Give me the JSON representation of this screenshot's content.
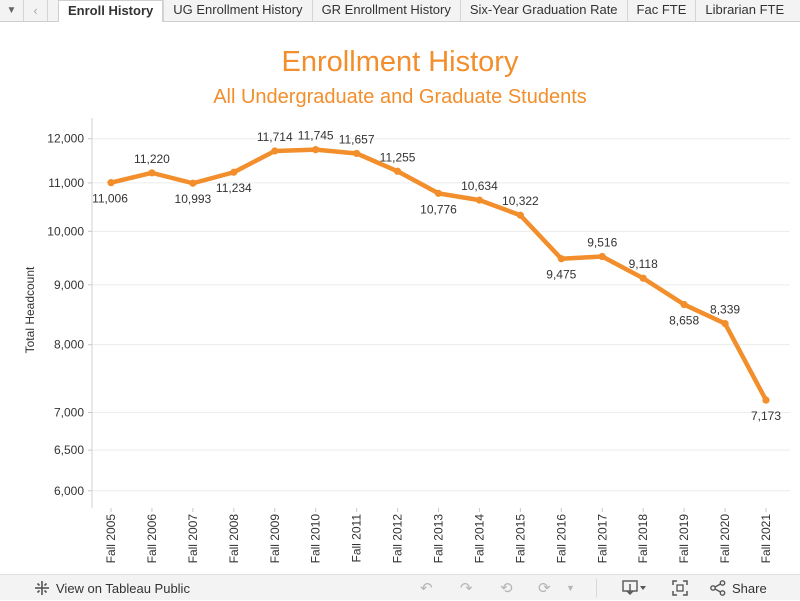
{
  "tabbar": {
    "menu_icon": "caret-down-icon",
    "prev_icon": "chevron-left-icon",
    "tabs": [
      {
        "label": "Enroll History",
        "active": true
      },
      {
        "label": "UG Enrollment History",
        "active": false
      },
      {
        "label": "GR Enrollment History",
        "active": false
      },
      {
        "label": "Six-Year Graduation Rate",
        "active": false
      },
      {
        "label": "Fac FTE",
        "active": false
      },
      {
        "label": "Librarian FTE",
        "active": false
      }
    ]
  },
  "titles": {
    "main": "Enrollment History",
    "sub": "All Undergraduate and Graduate Students"
  },
  "colors": {
    "accent": "#f28e2b",
    "grid": "#ececec",
    "text": "#333333"
  },
  "chart_data": {
    "type": "line",
    "title": "Enrollment History",
    "subtitle": "All Undergraduate and Graduate Students",
    "xlabel": "",
    "ylabel": "Total Headcount",
    "y_scale": "log",
    "ylim": [
      5800,
      12500
    ],
    "yticks": [
      6000,
      6500,
      7000,
      8000,
      9000,
      10000,
      11000,
      12000
    ],
    "ytick_labels": [
      "6,000",
      "6,500",
      "7,000",
      "8,000",
      "9,000",
      "10,000",
      "11,000",
      "12,000"
    ],
    "grid": true,
    "categories": [
      "Fall 2005",
      "Fall 2006",
      "Fall 2007",
      "Fall 2008",
      "Fall 2009",
      "Fall 2010",
      "Fall 2011",
      "Fall 2012",
      "Fall 2013",
      "Fall 2014",
      "Fall 2015",
      "Fall 2016",
      "Fall 2017",
      "Fall 2018",
      "Fall 2019",
      "Fall 2020",
      "Fall 2021"
    ],
    "series": [
      {
        "name": "Total Headcount",
        "values": [
          11006,
          11220,
          10993,
          11234,
          11714,
          11745,
          11657,
          11255,
          10776,
          10634,
          10322,
          9475,
          9516,
          9118,
          8658,
          8339,
          7173
        ],
        "labels": [
          "11,006",
          "11,220",
          "10,993",
          "11,234",
          "11,714",
          "11,745",
          "11,657",
          "11,255",
          "10,776",
          "10,634",
          "10,322",
          "9,475",
          "9,516",
          "9,118",
          "8,658",
          "8,339",
          "7,173"
        ],
        "label_side": [
          "below",
          "above",
          "below",
          "below",
          "above",
          "above",
          "above",
          "above",
          "below",
          "above",
          "above",
          "below",
          "above",
          "above",
          "below",
          "above",
          "below"
        ]
      }
    ]
  },
  "toolbar": {
    "view_label": "View on Tableau Public",
    "view_icon": "tableau-logo-icon",
    "undo_icon": "undo-icon",
    "redo_icon": "redo-icon",
    "revert_icon": "revert-icon",
    "refresh_icon": "refresh-icon",
    "pause_icon": "pause-icon",
    "download_icon": "download-icon",
    "fullscreen_icon": "fullscreen-icon",
    "share_label": "Share",
    "share_icon": "share-icon"
  }
}
